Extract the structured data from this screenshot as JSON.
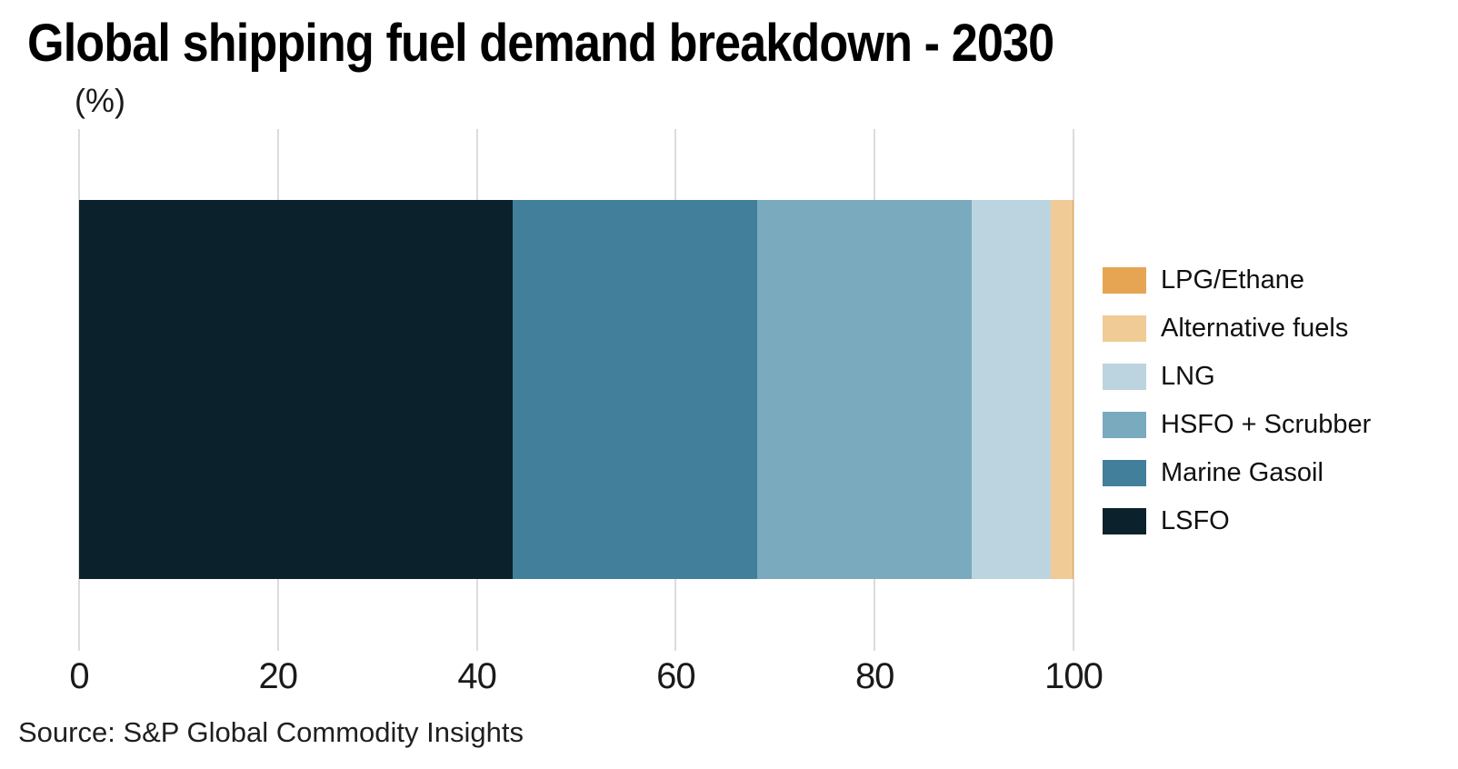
{
  "header": {
    "title": "Global shipping fuel demand breakdown - 2030",
    "unit_label": "(%)"
  },
  "footer": {
    "source": "Source: S&P Global Commodity Insights"
  },
  "chart_data": {
    "type": "bar",
    "orientation": "horizontal",
    "stacked": true,
    "title": "Global shipping fuel demand breakdown - 2030",
    "xlabel": "",
    "ylabel": "(%)",
    "xlim": [
      0,
      100
    ],
    "x_ticks": [
      "0",
      "20",
      "40",
      "60",
      "80",
      "100"
    ],
    "x_tick_values": [
      0,
      20,
      40,
      60,
      80,
      100
    ],
    "grid": true,
    "legend_position": "right",
    "categories": [
      "2030"
    ],
    "series": [
      {
        "name": "LSFO",
        "value": 43.6,
        "color": "#0b222c"
      },
      {
        "name": "Marine Gasoil",
        "value": 24.6,
        "color": "#417f9b"
      },
      {
        "name": "HSFO + Scrubber",
        "value": 21.6,
        "color": "#7aaabd"
      },
      {
        "name": "LNG",
        "value": 7.9,
        "color": "#bcd4df"
      },
      {
        "name": "Alternative fuels",
        "value": 2.2,
        "color": "#f0cb96"
      },
      {
        "name": "LPG/Ethane",
        "value": 0.1,
        "color": "#e6a553"
      }
    ],
    "legend_order": [
      "LPG/Ethane",
      "Alternative fuels",
      "LNG",
      "HSFO + Scrubber",
      "Marine Gasoil",
      "LSFO"
    ]
  }
}
